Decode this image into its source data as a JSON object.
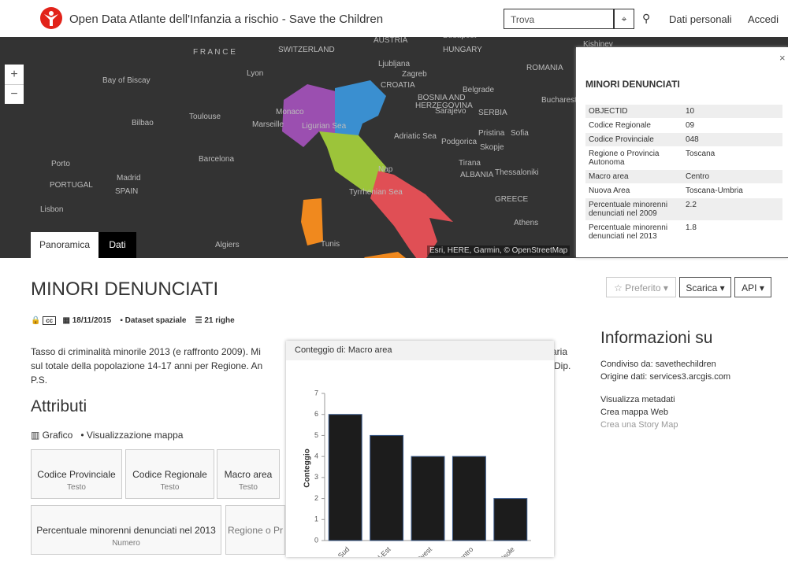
{
  "header": {
    "title": "Open Data Atlante dell'Infanzia a rischio - Save the Children",
    "search_placeholder": "Trova",
    "nav": [
      "Dati personali",
      "Accedi"
    ]
  },
  "map": {
    "zoom": [
      "+",
      "−"
    ],
    "tabs": [
      "Panoramica",
      "Dati"
    ],
    "attribution": "Esri, HERE, Garmin, © OpenStreetMap",
    "labels": [
      "F R A N C E",
      "SWITZERLAND",
      "AUSTRIA",
      "Budapest",
      "HUNGARY",
      "Lyon",
      "Bay of Biscay",
      "Ljubljana",
      "Zagreb",
      "CROATIA",
      "BOSNIA AND",
      "HERZEGOVINA",
      "Belgrade",
      "ROMANIA",
      "Bucharest",
      "SERBIA",
      "Sarajevo",
      "Monaco",
      "Marseille",
      "Toulouse",
      "Bilbao",
      "Ligurian Sea",
      "Adriatic Sea",
      "Pristina",
      "Sofia",
      "Podgorica",
      "Skopje",
      "Porto",
      "Barcelona",
      "Tirana",
      "ALBANIA",
      "Thessaloniki",
      "Madrid",
      "PORTUGAL",
      "SPAIN",
      "Nap",
      "Tyrrhenian Sea",
      "GREECE",
      "Lisbon",
      "Athens",
      "Algiers",
      "Tunis",
      "Kishinev"
    ]
  },
  "popup": {
    "title": "MINORI DENUNCIATI",
    "close": "×",
    "rows": [
      [
        "OBJECTID",
        "10"
      ],
      [
        "Codice Regionale",
        "09"
      ],
      [
        "Codice Provinciale",
        "048"
      ],
      [
        "Regione o Provincia Autonoma",
        "Toscana"
      ],
      [
        "Macro area",
        "Centro"
      ],
      [
        "Nuova Area",
        "Toscana-Umbria"
      ],
      [
        "Percentuale minorenni denunciati nel 2009",
        "2.2"
      ],
      [
        "Percentuale minorenni denunciati nel 2013",
        "1.8"
      ]
    ]
  },
  "main": {
    "title": "MINORI DENUNCIATI",
    "date": "18/11/2015",
    "kind": "Dataset spaziale",
    "rows": "21 righe",
    "buttons": [
      "☆ Preferito ▾",
      "Scarica ▾",
      "API ▾"
    ],
    "description": [
      "Tasso di criminalità minorile 2013 (e raffronto 2009). Mi",
      "aria",
      "sul totale della popolazione 14-17 anni per Regione. An",
      "Dip.",
      "P.S."
    ],
    "attributes_title": "Attributi",
    "toggles": [
      "Grafico",
      "Visualizzazione mappa"
    ],
    "cards": [
      {
        "name": "Codice Provinciale",
        "type": "Testo"
      },
      {
        "name": "Codice Regionale",
        "type": "Testo"
      },
      {
        "name": "Macro area",
        "type": "Testo"
      },
      {
        "name": "Percentuale minorenni denunciati nel 2013",
        "type": "Numero"
      },
      {
        "name": "Regione o Pr"
      }
    ]
  },
  "info": {
    "title": "Informazioni su",
    "shared": "Condiviso da: savethechildren",
    "origin": "Origine dati: services3.arcgis.com",
    "links": [
      "Visualizza metadati",
      "Crea mappa Web",
      "Crea una Story Map"
    ]
  },
  "chart_data": {
    "type": "bar",
    "title": "Conteggio di: Macro area",
    "y_label": "Conteggio",
    "categories": [
      "Sud",
      "Nord-Est",
      "Nord-Ovest",
      "Centro",
      "Isole"
    ],
    "values": [
      6,
      5,
      4,
      4,
      2
    ],
    "color": "#1c1c1c",
    "ylim": [
      0,
      7
    ],
    "yticks": [
      0,
      1,
      2,
      3,
      4,
      5,
      6,
      7
    ]
  }
}
